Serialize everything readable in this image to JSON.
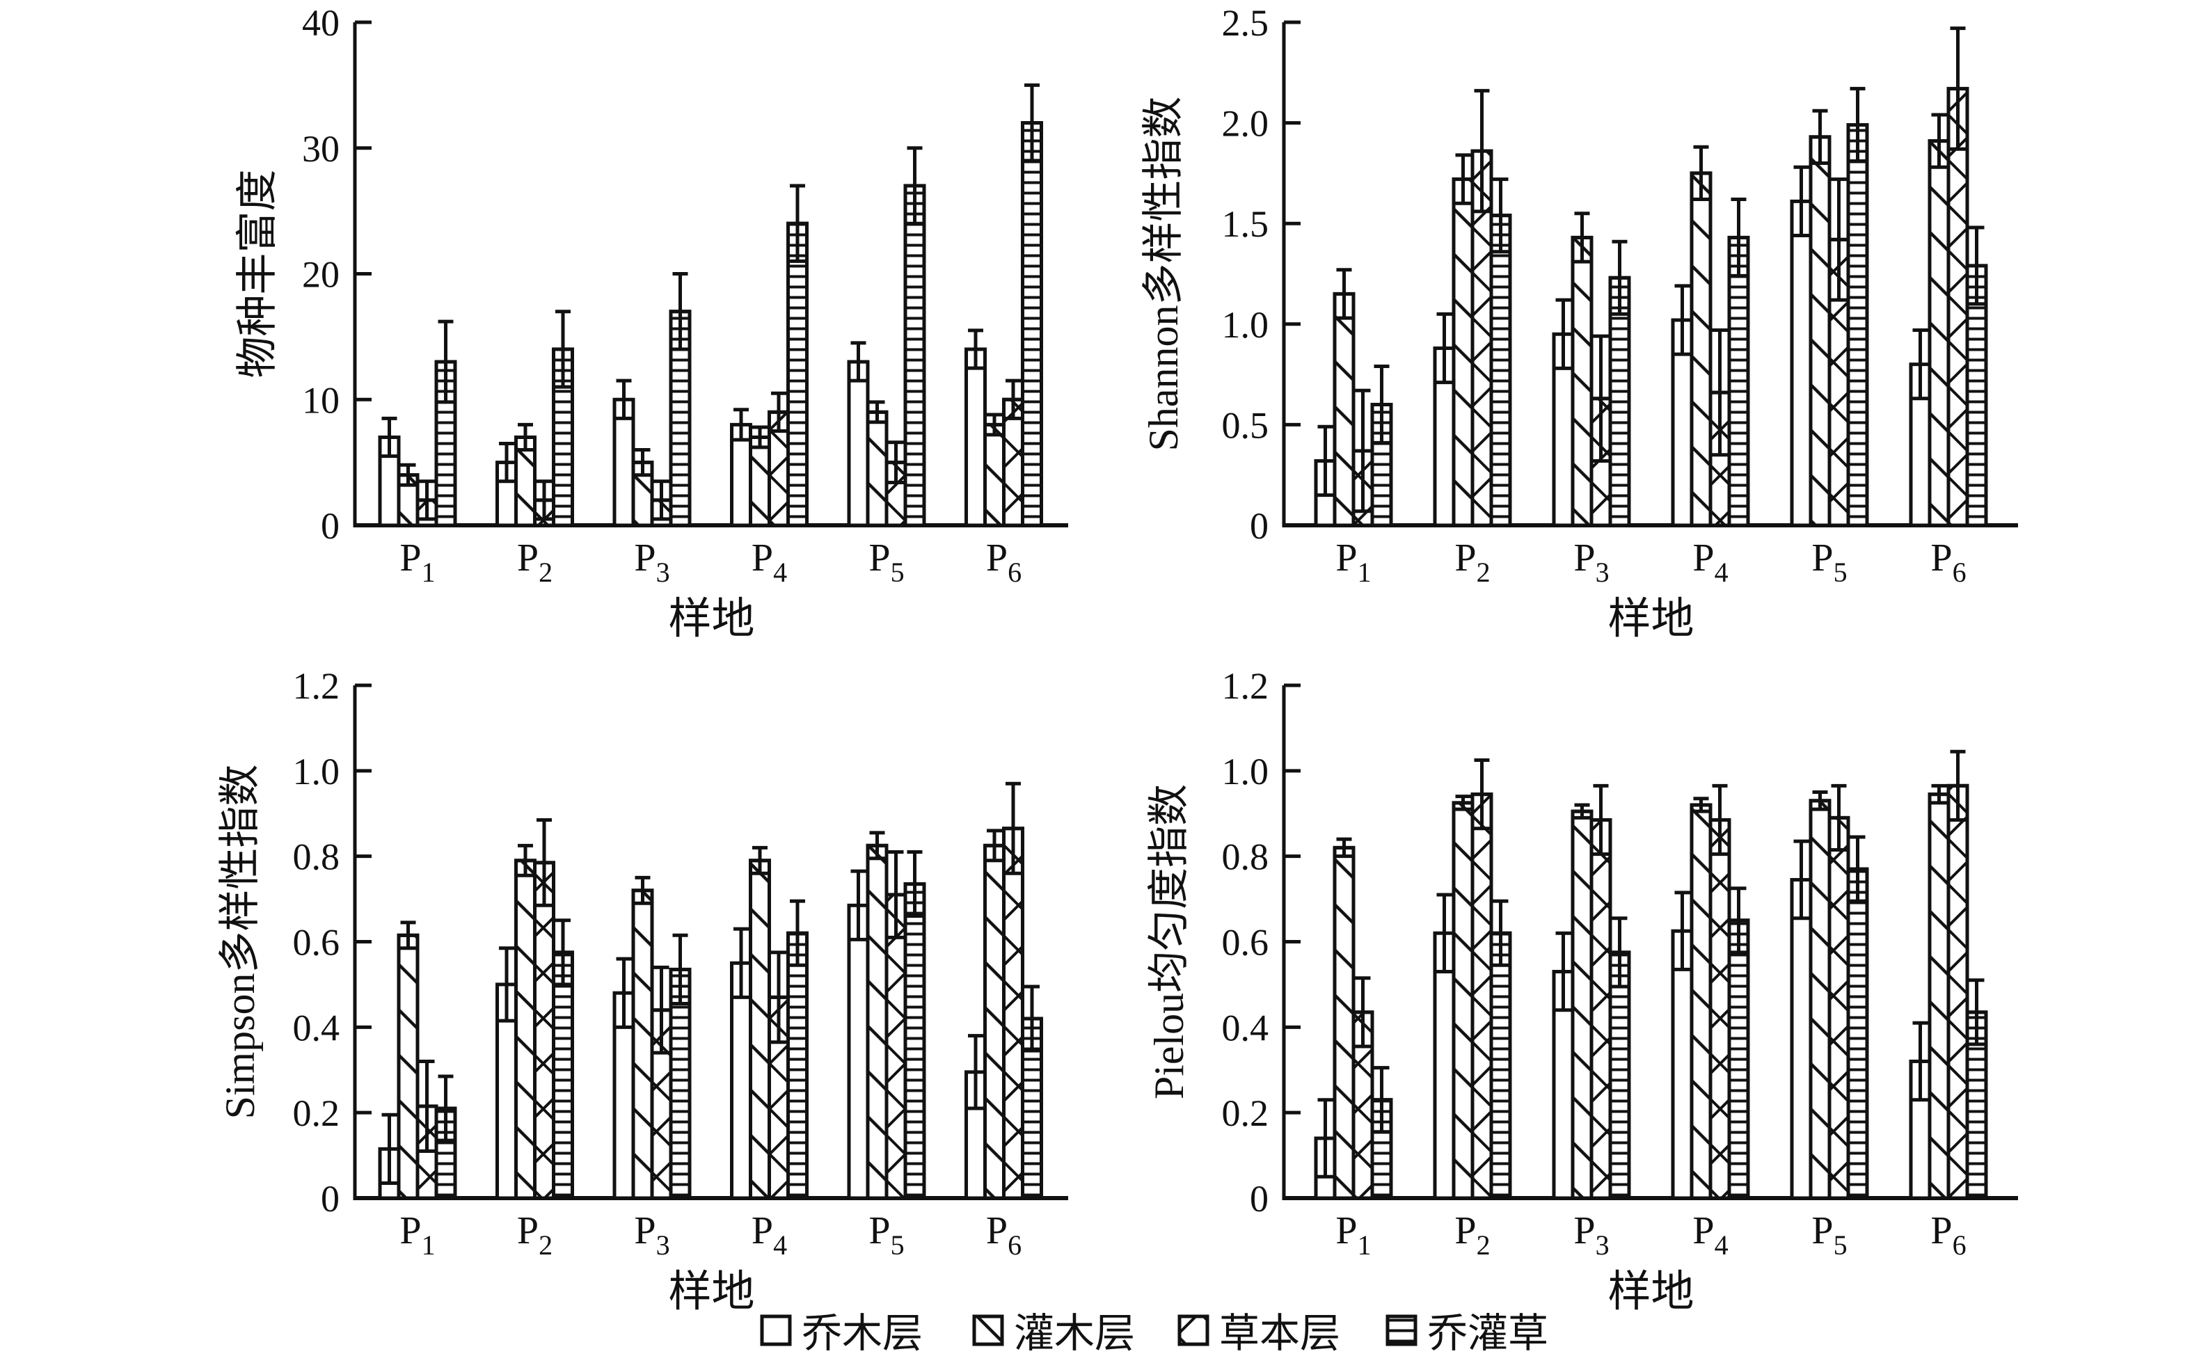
{
  "page": {
    "background": "#ffffff",
    "ink": "#111111"
  },
  "legend": {
    "items": [
      {
        "label": "乔木层",
        "pattern": "plain"
      },
      {
        "label": "灌木层",
        "pattern": "diag"
      },
      {
        "label": "草本层",
        "pattern": "cross"
      },
      {
        "label": "乔灌草",
        "pattern": "horiz"
      }
    ]
  },
  "categories": [
    {
      "label": "P",
      "sub": "1"
    },
    {
      "label": "P",
      "sub": "2"
    },
    {
      "label": "P",
      "sub": "3"
    },
    {
      "label": "P",
      "sub": "4"
    },
    {
      "label": "P",
      "sub": "5"
    },
    {
      "label": "P",
      "sub": "6"
    }
  ],
  "chart_data": [
    {
      "type": "bar",
      "name": "species-richness",
      "title": "",
      "ylabel": "物种丰富度",
      "xlabel": "样地",
      "ylim": [
        0,
        40
      ],
      "ytick_values": [
        0,
        10,
        20,
        30,
        40
      ],
      "ytick_labels": [
        "0",
        "10",
        "20",
        "30",
        "40"
      ],
      "categories": [
        "P1",
        "P2",
        "P3",
        "P4",
        "P5",
        "P6"
      ],
      "series": [
        {
          "name": "乔木层",
          "pattern": "plain",
          "values": [
            7,
            5,
            10,
            8,
            13,
            14
          ],
          "errors": [
            1.5,
            1.5,
            1.5,
            1.2,
            1.5,
            1.5
          ]
        },
        {
          "name": "灌木层",
          "pattern": "diag",
          "values": [
            4,
            7,
            5,
            7,
            9,
            8
          ],
          "errors": [
            0.8,
            1.0,
            1.0,
            0.8,
            0.8,
            0.8
          ]
        },
        {
          "name": "草本层",
          "pattern": "cross",
          "values": [
            2,
            2,
            2,
            9,
            5,
            10
          ],
          "errors": [
            1.5,
            1.5,
            1.5,
            1.5,
            1.6,
            1.5
          ]
        },
        {
          "name": "乔灌草",
          "pattern": "horiz",
          "values": [
            13,
            14,
            17,
            24,
            27,
            32
          ],
          "errors": [
            3.2,
            3.0,
            3.0,
            3.0,
            3.0,
            3.0
          ]
        }
      ]
    },
    {
      "type": "bar",
      "name": "shannon",
      "title": "",
      "ylabel": "Shannon多样性指数",
      "xlabel": "样地",
      "ylim": [
        0,
        2.5
      ],
      "ytick_values": [
        0,
        0.5,
        1.0,
        1.5,
        2.0,
        2.5
      ],
      "ytick_labels": [
        "0",
        "0.5",
        "1.0",
        "1.5",
        "2.0",
        "2.5"
      ],
      "categories": [
        "P1",
        "P2",
        "P3",
        "P4",
        "P5",
        "P6"
      ],
      "series": [
        {
          "name": "乔木层",
          "pattern": "plain",
          "values": [
            0.32,
            0.88,
            0.95,
            1.02,
            1.61,
            0.8
          ],
          "errors": [
            0.17,
            0.17,
            0.17,
            0.17,
            0.17,
            0.17
          ]
        },
        {
          "name": "灌木层",
          "pattern": "diag",
          "values": [
            1.15,
            1.72,
            1.43,
            1.75,
            1.93,
            1.91
          ],
          "errors": [
            0.12,
            0.12,
            0.12,
            0.13,
            0.13,
            0.13
          ]
        },
        {
          "name": "草本层",
          "pattern": "cross",
          "values": [
            0.37,
            1.86,
            0.63,
            0.66,
            1.42,
            2.17
          ],
          "errors": [
            0.3,
            0.3,
            0.31,
            0.31,
            0.3,
            0.3
          ]
        },
        {
          "name": "乔灌草",
          "pattern": "horiz",
          "values": [
            0.6,
            1.54,
            1.23,
            1.43,
            1.99,
            1.29
          ],
          "errors": [
            0.19,
            0.18,
            0.18,
            0.19,
            0.18,
            0.19
          ]
        }
      ]
    },
    {
      "type": "bar",
      "name": "simpson",
      "title": "",
      "ylabel": "Simpson多样性指数",
      "xlabel": "样地",
      "ylim": [
        0,
        1.2
      ],
      "ytick_values": [
        0,
        0.2,
        0.4,
        0.6,
        0.8,
        1.0,
        1.2
      ],
      "ytick_labels": [
        "0",
        "0.2",
        "0.4",
        "0.6",
        "0.8",
        "1.0",
        "1.2"
      ],
      "categories": [
        "P1",
        "P2",
        "P3",
        "P4",
        "P5",
        "P6"
      ],
      "series": [
        {
          "name": "乔木层",
          "pattern": "plain",
          "values": [
            0.115,
            0.5,
            0.48,
            0.55,
            0.685,
            0.295
          ],
          "errors": [
            0.08,
            0.085,
            0.08,
            0.08,
            0.08,
            0.085
          ]
        },
        {
          "name": "灌木层",
          "pattern": "diag",
          "values": [
            0.615,
            0.79,
            0.72,
            0.79,
            0.825,
            0.825
          ],
          "errors": [
            0.03,
            0.035,
            0.03,
            0.03,
            0.03,
            0.035
          ]
        },
        {
          "name": "草本层",
          "pattern": "cross",
          "values": [
            0.215,
            0.785,
            0.44,
            0.47,
            0.71,
            0.865
          ],
          "errors": [
            0.105,
            0.1,
            0.1,
            0.105,
            0.1,
            0.105
          ]
        },
        {
          "name": "乔灌草",
          "pattern": "horiz",
          "values": [
            0.21,
            0.575,
            0.535,
            0.62,
            0.735,
            0.42
          ],
          "errors": [
            0.075,
            0.075,
            0.08,
            0.075,
            0.075,
            0.075
          ]
        }
      ]
    },
    {
      "type": "bar",
      "name": "pielou",
      "title": "",
      "ylabel": "Pielou均匀度指数",
      "xlabel": "样地",
      "ylim": [
        0,
        1.2
      ],
      "ytick_values": [
        0,
        0.2,
        0.4,
        0.6,
        0.8,
        1.0,
        1.2
      ],
      "ytick_labels": [
        "0",
        "0.2",
        "0.4",
        "0.6",
        "0.8",
        "1.0",
        "1.2"
      ],
      "categories": [
        "P1",
        "P2",
        "P3",
        "P4",
        "P5",
        "P6"
      ],
      "series": [
        {
          "name": "乔木层",
          "pattern": "plain",
          "values": [
            0.14,
            0.62,
            0.53,
            0.625,
            0.745,
            0.32
          ],
          "errors": [
            0.09,
            0.09,
            0.09,
            0.09,
            0.09,
            0.09
          ]
        },
        {
          "name": "灌木层",
          "pattern": "diag",
          "values": [
            0.82,
            0.925,
            0.905,
            0.92,
            0.93,
            0.945
          ],
          "errors": [
            0.02,
            0.015,
            0.015,
            0.015,
            0.02,
            0.02
          ]
        },
        {
          "name": "草本层",
          "pattern": "cross",
          "values": [
            0.435,
            0.945,
            0.885,
            0.885,
            0.89,
            0.965
          ],
          "errors": [
            0.08,
            0.08,
            0.08,
            0.08,
            0.075,
            0.08
          ]
        },
        {
          "name": "乔灌草",
          "pattern": "horiz",
          "values": [
            0.23,
            0.62,
            0.575,
            0.65,
            0.77,
            0.435
          ],
          "errors": [
            0.075,
            0.075,
            0.08,
            0.075,
            0.075,
            0.075
          ]
        }
      ]
    }
  ]
}
